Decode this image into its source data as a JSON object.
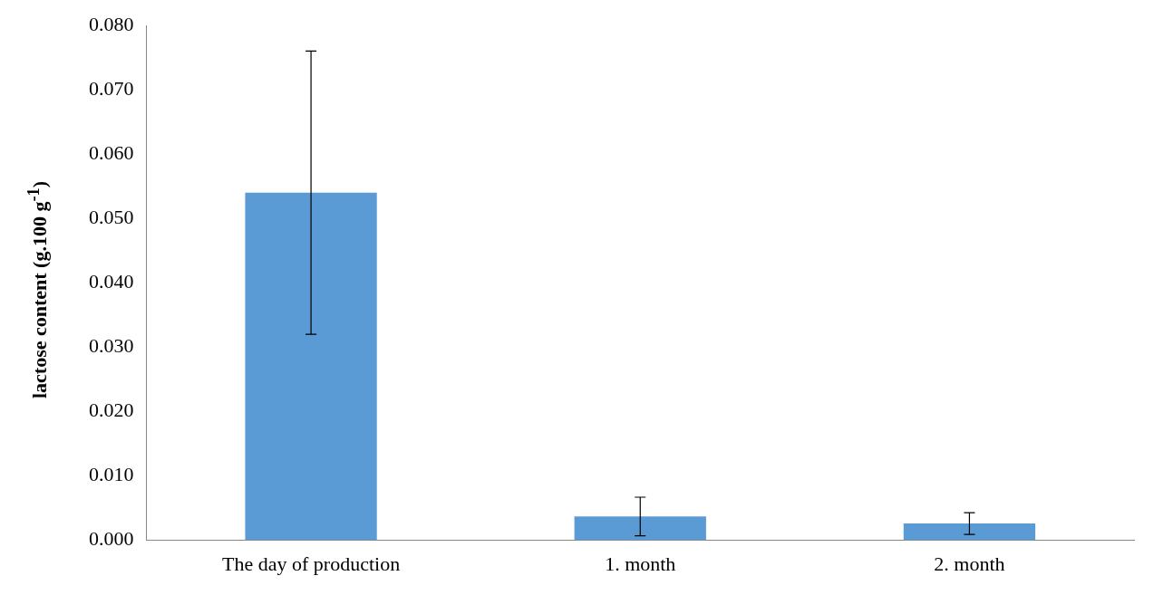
{
  "chart_data": {
    "type": "bar",
    "ylabel": "lactose content (g.100 g$^{-1}$)",
    "categories": [
      "The day of production",
      "1. month",
      "2. month"
    ],
    "values": [
      0.054,
      0.0037,
      0.0026
    ],
    "errors": [
      0.022,
      0.003,
      0.0017
    ],
    "color": "#5b9bd5",
    "ylim": [
      0,
      0.08
    ],
    "yticks": [
      {
        "value": 0,
        "label": "0.000"
      },
      {
        "value": 0.01,
        "label": "0.010"
      },
      {
        "value": 0.02,
        "label": "0.020"
      },
      {
        "value": 0.03,
        "label": "0.030"
      },
      {
        "value": 0.04,
        "label": "0.040"
      },
      {
        "value": 0.05,
        "label": "0.050"
      },
      {
        "value": 0.06,
        "label": "0.060"
      },
      {
        "value": 0.07,
        "label": "0.070"
      },
      {
        "value": 0.08,
        "label": "0.080"
      }
    ],
    "grid": false,
    "legend": false
  }
}
